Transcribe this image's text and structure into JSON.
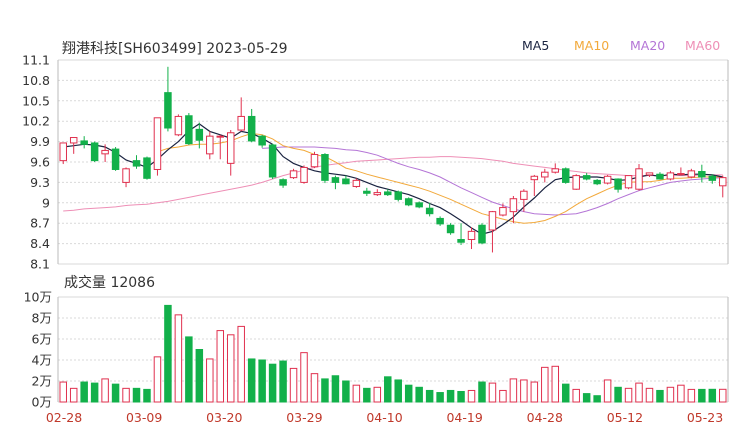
{
  "header": {
    "title": "翔港科技[SH603499] 2023-05-29",
    "volume_label": "成交量 12086"
  },
  "legend": [
    {
      "name": "MA5",
      "color": "#1a2340"
    },
    {
      "name": "MA10",
      "color": "#f2a93b"
    },
    {
      "name": "MA20",
      "color": "#b475d6"
    },
    {
      "name": "MA60",
      "color": "#ee8fb6"
    }
  ],
  "colors": {
    "up": "#e0304e",
    "down": "#12b04a"
  },
  "chart_data": [
    {
      "type": "candlestick",
      "title": "翔港科技[SH603499] 2023-05-29",
      "yticks": [
        "11.1",
        "10.8",
        "10.5",
        "10.2",
        "9.9",
        "9.6",
        "9.3",
        "9",
        "8.7",
        "8.4",
        "8.1"
      ],
      "ylim": [
        8.1,
        11.1
      ],
      "grid": true,
      "x_labels": [
        "02-28",
        "03-09",
        "03-20",
        "03-29",
        "04-10",
        "04-19",
        "04-28",
        "05-12",
        "05-23"
      ],
      "candles": [
        [
          9.62,
          9.88,
          9.88,
          9.57
        ],
        [
          9.88,
          9.96,
          9.96,
          9.72
        ],
        [
          9.91,
          9.86,
          9.98,
          9.8
        ],
        [
          9.88,
          9.62,
          9.9,
          9.6
        ],
        [
          9.72,
          9.77,
          9.86,
          9.6
        ],
        [
          9.79,
          9.49,
          9.82,
          9.47
        ],
        [
          9.3,
          9.5,
          9.52,
          9.23
        ],
        [
          9.62,
          9.54,
          9.7,
          9.5
        ],
        [
          9.66,
          9.36,
          9.68,
          9.34
        ],
        [
          9.49,
          10.25,
          10.25,
          9.4
        ],
        [
          10.62,
          10.1,
          11.0,
          10.05
        ],
        [
          10.0,
          10.27,
          10.3,
          9.98
        ],
        [
          10.28,
          9.87,
          10.32,
          9.85
        ],
        [
          10.08,
          9.92,
          10.18,
          9.8
        ],
        [
          9.72,
          9.98,
          10.05,
          9.64
        ],
        [
          9.97,
          9.98,
          10.0,
          9.64
        ],
        [
          9.58,
          10.03,
          10.07,
          9.4
        ],
        [
          10.07,
          10.27,
          10.55,
          10.05
        ],
        [
          10.27,
          9.91,
          10.38,
          9.89
        ],
        [
          9.98,
          9.85,
          10.0,
          9.81
        ],
        [
          9.85,
          9.38,
          9.87,
          9.35
        ],
        [
          9.34,
          9.26,
          9.36,
          9.22
        ],
        [
          9.37,
          9.47,
          9.5,
          9.35
        ],
        [
          9.3,
          9.52,
          9.55,
          9.28
        ],
        [
          9.53,
          9.71,
          9.75,
          9.51
        ],
        [
          9.71,
          9.33,
          9.73,
          9.29
        ],
        [
          9.37,
          9.3,
          9.4,
          9.2
        ],
        [
          9.35,
          9.28,
          9.4,
          9.27
        ],
        [
          9.24,
          9.33,
          9.36,
          9.22
        ],
        [
          9.17,
          9.14,
          9.22,
          9.1
        ],
        [
          9.12,
          9.15,
          9.2,
          9.1
        ],
        [
          9.16,
          9.12,
          9.2,
          9.1
        ],
        [
          9.16,
          9.05,
          9.18,
          9.02
        ],
        [
          9.06,
          8.97,
          9.08,
          8.95
        ],
        [
          9.0,
          8.94,
          9.02,
          8.92
        ],
        [
          8.92,
          8.84,
          9.0,
          8.8
        ],
        [
          8.77,
          8.69,
          8.8,
          8.66
        ],
        [
          8.67,
          8.56,
          8.7,
          8.53
        ],
        [
          8.46,
          8.42,
          8.7,
          8.38
        ],
        [
          8.46,
          8.58,
          8.64,
          8.32
        ],
        [
          8.67,
          8.41,
          8.7,
          8.39
        ],
        [
          8.6,
          8.87,
          8.88,
          8.27
        ],
        [
          8.82,
          8.93,
          8.99,
          8.8
        ],
        [
          8.87,
          9.06,
          9.1,
          8.7
        ],
        [
          9.05,
          9.17,
          9.2,
          8.87
        ],
        [
          9.34,
          9.39,
          9.41,
          9.1
        ],
        [
          9.38,
          9.45,
          9.5,
          9.3
        ],
        [
          9.45,
          9.5,
          9.58,
          9.43
        ],
        [
          9.5,
          9.3,
          9.52,
          9.28
        ],
        [
          9.2,
          9.4,
          9.42,
          9.19
        ],
        [
          9.4,
          9.35,
          9.44,
          9.33
        ],
        [
          9.33,
          9.28,
          9.35,
          9.26
        ],
        [
          9.29,
          9.39,
          9.41,
          9.27
        ],
        [
          9.35,
          9.2,
          9.36,
          9.15
        ],
        [
          9.22,
          9.4,
          9.4,
          9.2
        ],
        [
          9.2,
          9.5,
          9.57,
          9.18
        ],
        [
          9.41,
          9.44,
          9.44,
          9.38
        ],
        [
          9.42,
          9.35,
          9.45,
          9.34
        ],
        [
          9.35,
          9.44,
          9.47,
          9.33
        ],
        [
          9.42,
          9.43,
          9.52,
          9.4
        ],
        [
          9.38,
          9.47,
          9.5,
          9.36
        ],
        [
          9.46,
          9.38,
          9.56,
          9.3
        ],
        [
          9.39,
          9.33,
          9.42,
          9.28
        ],
        [
          9.25,
          9.37,
          9.4,
          9.08
        ]
      ],
      "ma_lines": {
        "MA5": [
          9.82,
          9.84,
          9.86,
          9.85,
          9.82,
          9.74,
          9.63,
          9.58,
          9.52,
          9.64,
          9.78,
          9.9,
          10.06,
          10.16,
          10.05,
          10.0,
          9.95,
          10.05,
          10.02,
          9.95,
          9.86,
          9.68,
          9.58,
          9.52,
          9.47,
          9.44,
          9.42,
          9.4,
          9.36,
          9.3,
          9.24,
          9.2,
          9.16,
          9.12,
          9.06,
          8.99,
          8.93,
          8.84,
          8.74,
          8.63,
          8.54,
          8.58,
          8.68,
          8.79,
          8.94,
          9.07,
          9.22,
          9.34,
          9.37,
          9.38,
          9.38,
          9.38,
          9.36,
          9.33,
          9.34,
          9.38,
          9.41,
          9.39,
          9.42,
          9.41,
          9.42,
          9.42,
          9.41,
          9.38
        ],
        "MA10": [
          null,
          null,
          null,
          null,
          null,
          null,
          null,
          null,
          null,
          9.75,
          9.8,
          9.82,
          9.85,
          9.86,
          9.86,
          9.88,
          9.91,
          9.97,
          10.02,
          10.0,
          9.94,
          9.84,
          9.8,
          9.77,
          9.71,
          9.68,
          9.6,
          9.51,
          9.47,
          9.42,
          9.38,
          9.34,
          9.3,
          9.26,
          9.22,
          9.17,
          9.11,
          9.05,
          8.98,
          8.91,
          8.84,
          8.8,
          8.76,
          8.72,
          8.7,
          8.71,
          8.74,
          8.8,
          8.87,
          8.97,
          9.06,
          9.13,
          9.2,
          9.26,
          9.3,
          9.31,
          9.31,
          9.33,
          9.36,
          9.36,
          9.37,
          9.38,
          9.38,
          9.38
        ],
        "MA20": [
          null,
          null,
          null,
          null,
          null,
          null,
          null,
          null,
          null,
          null,
          null,
          null,
          null,
          null,
          null,
          null,
          null,
          null,
          null,
          9.8,
          9.81,
          9.82,
          9.82,
          9.82,
          9.82,
          9.81,
          9.8,
          9.78,
          9.77,
          9.74,
          9.7,
          9.64,
          9.58,
          9.53,
          9.49,
          9.44,
          9.38,
          9.3,
          9.22,
          9.15,
          9.08,
          9.01,
          8.96,
          8.91,
          8.87,
          8.84,
          8.83,
          8.82,
          8.83,
          8.84,
          8.88,
          8.93,
          8.99,
          9.06,
          9.12,
          9.18,
          9.22,
          9.26,
          9.3,
          9.32,
          9.34,
          9.35,
          9.36,
          9.37
        ],
        "MA60": [
          8.88,
          8.89,
          8.91,
          8.92,
          8.93,
          8.94,
          8.96,
          8.97,
          8.98,
          9.0,
          9.02,
          9.05,
          9.08,
          9.11,
          9.14,
          9.17,
          9.2,
          9.23,
          9.26,
          9.3,
          9.35,
          9.4,
          9.44,
          9.48,
          9.52,
          9.55,
          9.57,
          9.59,
          9.61,
          9.62,
          9.63,
          9.64,
          9.65,
          9.66,
          9.67,
          9.67,
          9.68,
          9.68,
          9.67,
          9.66,
          9.65,
          9.63,
          9.61,
          9.58,
          9.56,
          9.54,
          9.52,
          9.5,
          9.48,
          9.46,
          9.44,
          9.43,
          9.42,
          9.41,
          9.4,
          9.4,
          9.4,
          9.4,
          9.4,
          9.4,
          9.4,
          9.41,
          9.41,
          9.41
        ]
      }
    },
    {
      "type": "bar",
      "title": "成交量 12086",
      "yticks": [
        "10万",
        "8万",
        "6万",
        "4万",
        "2万",
        "0万"
      ],
      "ylim": [
        0,
        100000
      ],
      "grid": true,
      "volumes": [
        19000,
        13000,
        19000,
        18000,
        22000,
        17000,
        13000,
        13000,
        12000,
        43000,
        92000,
        83000,
        62000,
        50000,
        41000,
        68000,
        64000,
        72000,
        41000,
        40000,
        36000,
        39000,
        32000,
        47000,
        27000,
        22000,
        25000,
        20000,
        16000,
        13000,
        14000,
        24000,
        21000,
        16000,
        14000,
        11000,
        9000,
        11000,
        10000,
        11000,
        19000,
        18000,
        11000,
        22000,
        21000,
        19000,
        33000,
        34000,
        17000,
        12000,
        8000,
        6000,
        21000,
        14000,
        13000,
        18000,
        13000,
        11000,
        14000,
        16000,
        12000,
        12000,
        12086,
        12086
      ]
    }
  ]
}
